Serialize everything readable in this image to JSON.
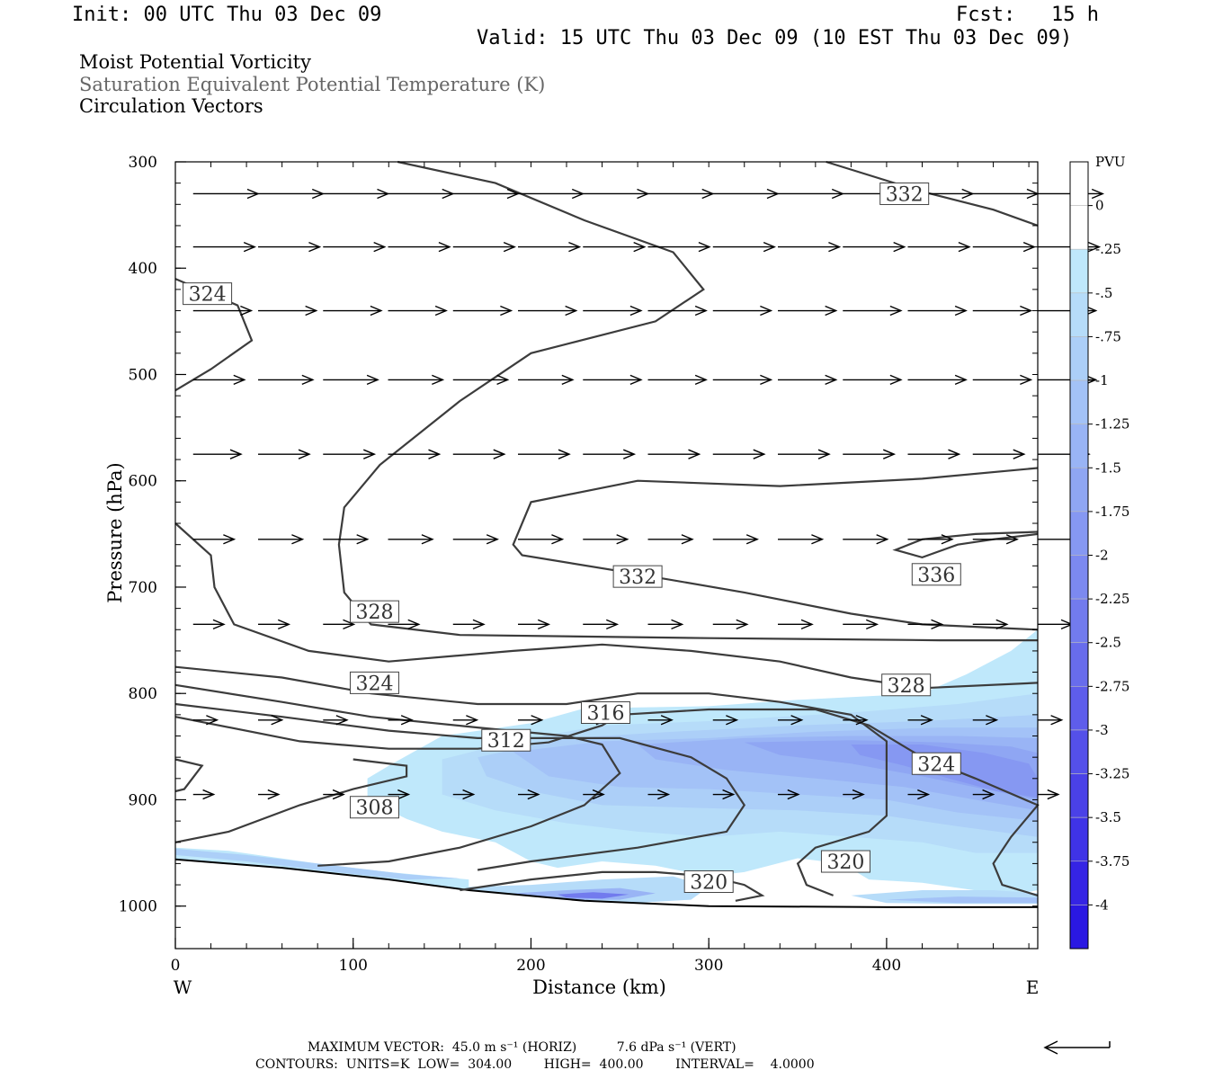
{
  "header": {
    "init": "Init: 00 UTC Thu 03 Dec 09",
    "fcst": "Fcst:   15 h",
    "valid": "Valid: 15 UTC Thu 03 Dec 09 (10 EST Thu 03 Dec 09)"
  },
  "fields": [
    {
      "label": "Moist Potential Vorticity",
      "color": "#000000"
    },
    {
      "label": "Saturation Equivalent Potential Temperature (K)",
      "color": "#666666"
    },
    {
      "label": "Circulation Vectors",
      "color": "#000000"
    }
  ],
  "colors": {
    "contour": "#3c3c3c",
    "vector": "#000000",
    "axis": "#000000"
  },
  "chart_data": {
    "type": "contour-cross-section",
    "xlabel": "Distance (km)",
    "ylabel": "Pressure (hPa)",
    "xlim": [
      0,
      485
    ],
    "ylim": [
      1040,
      300
    ],
    "x_ticks": [
      0,
      100,
      200,
      300,
      400
    ],
    "y_ticks": [
      300,
      400,
      500,
      600,
      700,
      800,
      900,
      1000
    ],
    "x_end_labels": {
      "left": "W",
      "right": "E"
    },
    "colorbar": {
      "unit": "PVU",
      "ticks": [
        "0",
        "-.25",
        "-.5",
        "-.75",
        "-1",
        "-1.25",
        "-1.5",
        "-1.75",
        "-2",
        "-2.25",
        "-2.5",
        "-2.75",
        "-3",
        "-3.25",
        "-3.5",
        "-3.75",
        "-4"
      ],
      "colors": [
        "#ffffff",
        "#ffffff",
        "#bfe8fb",
        "#b6dcf9",
        "#accff8",
        "#a3c2f7",
        "#99b4f5",
        "#8fa6f3",
        "#8698f2",
        "#7c89f0",
        "#727bee",
        "#686cec",
        "#5e5deb",
        "#5450e9",
        "#4a41e7",
        "#3f33e6",
        "#3524e4",
        "#2a18e2"
      ]
    },
    "contour_labels": [
      {
        "text": "332",
        "x": 410,
        "p": 330
      },
      {
        "text": "324",
        "x": 18,
        "p": 424
      },
      {
        "text": "328",
        "x": 112,
        "p": 723
      },
      {
        "text": "332",
        "x": 260,
        "p": 690
      },
      {
        "text": "336",
        "x": 428,
        "p": 688
      },
      {
        "text": "324",
        "x": 112,
        "p": 790
      },
      {
        "text": "328",
        "x": 411,
        "p": 792
      },
      {
        "text": "316",
        "x": 242,
        "p": 818
      },
      {
        "text": "312",
        "x": 186,
        "p": 844
      },
      {
        "text": "324",
        "x": 428,
        "p": 866
      },
      {
        "text": "308",
        "x": 112,
        "p": 907
      },
      {
        "text": "320",
        "x": 377,
        "p": 958
      },
      {
        "text": "320",
        "x": 300,
        "p": 977
      }
    ],
    "vector_rows": [
      {
        "p": 330,
        "u": [
          38,
          38,
          38,
          38,
          38,
          38,
          38,
          38,
          38,
          38,
          38,
          38,
          38,
          38
        ],
        "v": [
          0,
          0,
          0,
          0,
          0,
          0,
          0,
          0,
          0,
          0,
          0,
          0,
          0,
          0
        ]
      },
      {
        "p": 380,
        "u": [
          36,
          36,
          36,
          36,
          36,
          36,
          36,
          36,
          36,
          36,
          36,
          36,
          36,
          36
        ],
        "v": [
          0,
          0,
          0,
          0,
          0,
          0,
          0,
          0,
          0,
          0,
          0,
          0,
          0,
          0
        ]
      },
      {
        "p": 440,
        "u": [
          34,
          34,
          34,
          34,
          34,
          34,
          34,
          34,
          34,
          34,
          34,
          34,
          34,
          34
        ],
        "v": [
          0,
          0,
          0,
          0,
          0,
          0,
          0,
          0,
          0,
          0,
          0,
          0,
          0,
          0
        ]
      },
      {
        "p": 505,
        "u": [
          30,
          32,
          32,
          32,
          32,
          32,
          34,
          34,
          34,
          34,
          34,
          34,
          34,
          34
        ],
        "v": [
          0,
          0,
          0,
          0,
          0,
          0,
          0,
          0,
          0,
          0,
          0,
          0,
          0,
          0
        ]
      },
      {
        "p": 575,
        "u": [
          28,
          30,
          30,
          30,
          30,
          30,
          30,
          30,
          30,
          30,
          30,
          30,
          30,
          30
        ],
        "v": [
          0,
          0,
          0,
          0,
          0,
          0,
          0,
          0,
          0,
          0,
          0,
          0,
          0,
          0
        ]
      },
      {
        "p": 655,
        "u": [
          24,
          26,
          26,
          26,
          26,
          26,
          26,
          26,
          26,
          26,
          26,
          26,
          26,
          26
        ],
        "v": [
          0,
          0,
          0,
          0,
          0,
          0,
          0,
          0,
          0,
          0,
          0,
          0,
          0,
          0
        ]
      },
      {
        "p": 735,
        "u": [
          18,
          18,
          18,
          18,
          18,
          18,
          20,
          20,
          20,
          20,
          20,
          20,
          20,
          20
        ],
        "v": [
          0,
          0,
          0,
          0,
          0,
          0,
          0,
          0,
          0,
          0,
          0,
          0,
          0,
          0
        ]
      },
      {
        "p": 825,
        "u": [
          14,
          14,
          14,
          14,
          14,
          14,
          14,
          14,
          14,
          14,
          14,
          14,
          14,
          14
        ],
        "v": [
          0,
          0,
          0,
          0,
          0,
          0,
          0,
          0,
          0,
          0,
          0,
          0,
          0,
          0
        ]
      },
      {
        "p": 895,
        "u": [
          12,
          12,
          12,
          12,
          12,
          12,
          12,
          12,
          12,
          12,
          12,
          12,
          12,
          12
        ],
        "v": [
          0,
          0,
          0,
          0,
          0,
          0,
          0,
          0,
          0,
          0,
          0,
          0,
          0,
          0
        ]
      }
    ]
  },
  "footer": {
    "max_vector": "MAXIMUM VECTOR:  45.0 m s⁻¹ (HORIZ)          7.6 dPa s⁻¹ (VERT)",
    "contours": "CONTOURS:  UNITS=K  LOW=  304.00        HIGH=  400.00        INTERVAL=    4.0000"
  }
}
